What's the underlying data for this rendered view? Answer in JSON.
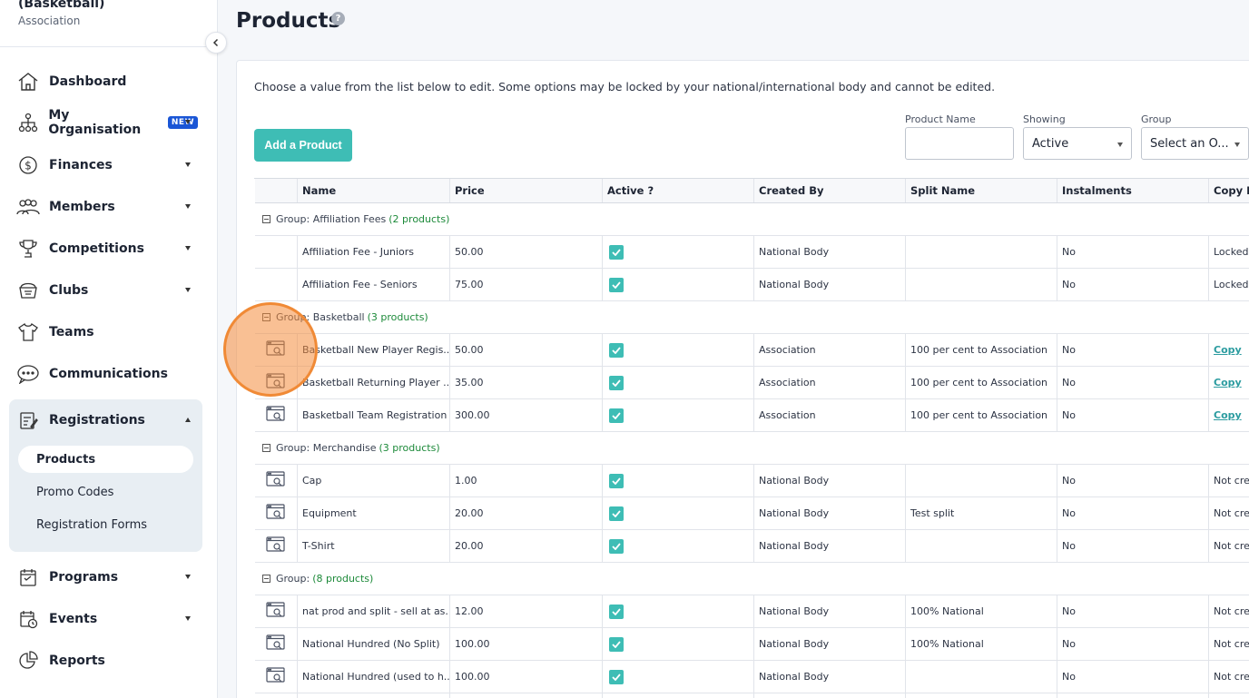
{
  "org": {
    "name": "(Basketball)",
    "type": "Association"
  },
  "nav": {
    "dashboard": "Dashboard",
    "my_org": "My Organisation",
    "new_badge": "NEW",
    "finances": "Finances",
    "members": "Members",
    "competitions": "Competitions",
    "clubs": "Clubs",
    "teams": "Teams",
    "communications": "Communications",
    "registrations": "Registrations",
    "products": "Products",
    "promo_codes": "Promo Codes",
    "registration_forms": "Registration Forms",
    "programs": "Programs",
    "events": "Events",
    "reports": "Reports"
  },
  "page": {
    "title": "Products",
    "help": "?",
    "instructions": "Choose a value from the list below to edit. Some options may be locked by your national/international body and cannot be edited.",
    "add_button": "Add a Product"
  },
  "filters": {
    "product_name_label": "Product Name",
    "product_name_value": "",
    "showing_label": "Showing",
    "showing_value": "Active",
    "group_label": "Group",
    "group_value": "Select an O..."
  },
  "table": {
    "headers": [
      "Name",
      "Price",
      "Active ?",
      "Created By",
      "Split Name",
      "Instalments",
      "Copy Pr"
    ],
    "groups": [
      {
        "label": "Group: Affiliation Fees",
        "count": "(2 products)"
      },
      {
        "label": "Group: Basketball",
        "count": "(3 products)"
      },
      {
        "label": "Group: Merchandise",
        "count": "(3 products)"
      },
      {
        "label": "Group:",
        "count": "(8 products)"
      }
    ],
    "rows": [
      {
        "name": "Affiliation Fee - Juniors",
        "price": "50.00",
        "created_by": "National Body",
        "split": "",
        "instalments": "No",
        "copy": "Locked"
      },
      {
        "name": "Affiliation Fee - Seniors",
        "price": "75.00",
        "created_by": "National Body",
        "split": "",
        "instalments": "No",
        "copy": "Locked"
      },
      {
        "name": "Basketball New Player Regis...",
        "price": "50.00",
        "created_by": "Association",
        "split": "100 per cent to Association",
        "instalments": "No",
        "copy": "Copy"
      },
      {
        "name": "Basketball Returning Player ...",
        "price": "35.00",
        "created_by": "Association",
        "split": "100 per cent to Association",
        "instalments": "No",
        "copy": "Copy"
      },
      {
        "name": "Basketball Team Registration",
        "price": "300.00",
        "created_by": "Association",
        "split": "100 per cent to Association",
        "instalments": "No",
        "copy": "Copy"
      },
      {
        "name": "Cap",
        "price": "1.00",
        "created_by": "National Body",
        "split": "",
        "instalments": "No",
        "copy": "Not crea"
      },
      {
        "name": "Equipment",
        "price": "20.00",
        "created_by": "National Body",
        "split": "Test split",
        "instalments": "No",
        "copy": "Not crea"
      },
      {
        "name": "T-Shirt",
        "price": "20.00",
        "created_by": "National Body",
        "split": "",
        "instalments": "No",
        "copy": "Not crea"
      },
      {
        "name": "nat prod and split - sell at as...",
        "price": "12.00",
        "created_by": "National Body",
        "split": "100% National",
        "instalments": "No",
        "copy": "Not crea"
      },
      {
        "name": "National Hundred (No Split)",
        "price": "100.00",
        "created_by": "National Body",
        "split": "100% National",
        "instalments": "No",
        "copy": "Not crea"
      },
      {
        "name": "National Hundred (used to h...",
        "price": "100.00",
        "created_by": "National Body",
        "split": "",
        "instalments": "No",
        "copy": "Not crea"
      }
    ]
  },
  "colors": {
    "accent": "#3ebdb5",
    "highlight": "#f08a36",
    "badge": "#1a56d6"
  }
}
